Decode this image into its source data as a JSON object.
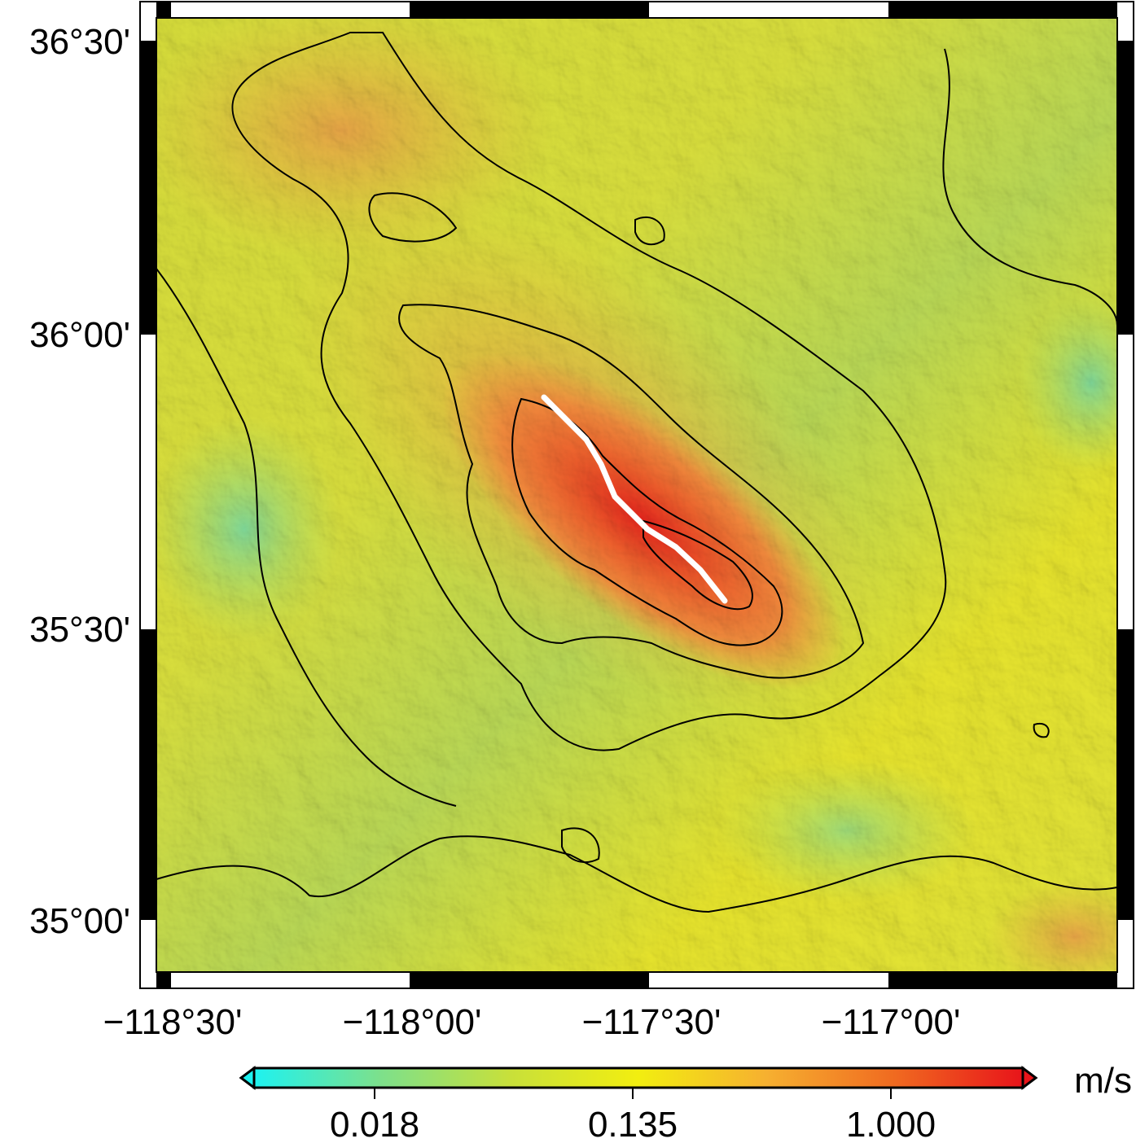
{
  "map": {
    "lat_labels": [
      "36°30'",
      "36°00'",
      "35°30'",
      "35°00'"
    ],
    "lon_labels": [
      "−118°30'",
      "−118°00'",
      "−117°30'",
      "−117°00'"
    ],
    "value_scale": "log"
  },
  "colorbar": {
    "tick_labels": [
      "0.018",
      "0.135",
      "1.000"
    ],
    "unit": "m/s",
    "colors": [
      "#1ef2f0",
      "#7ee08a",
      "#c8e03a",
      "#f2ee10",
      "#f6b030",
      "#f06a20",
      "#e8141a"
    ]
  },
  "colors": {
    "rupture_line": "#ffffff",
    "contour": "#000000",
    "frame": "#000000"
  }
}
